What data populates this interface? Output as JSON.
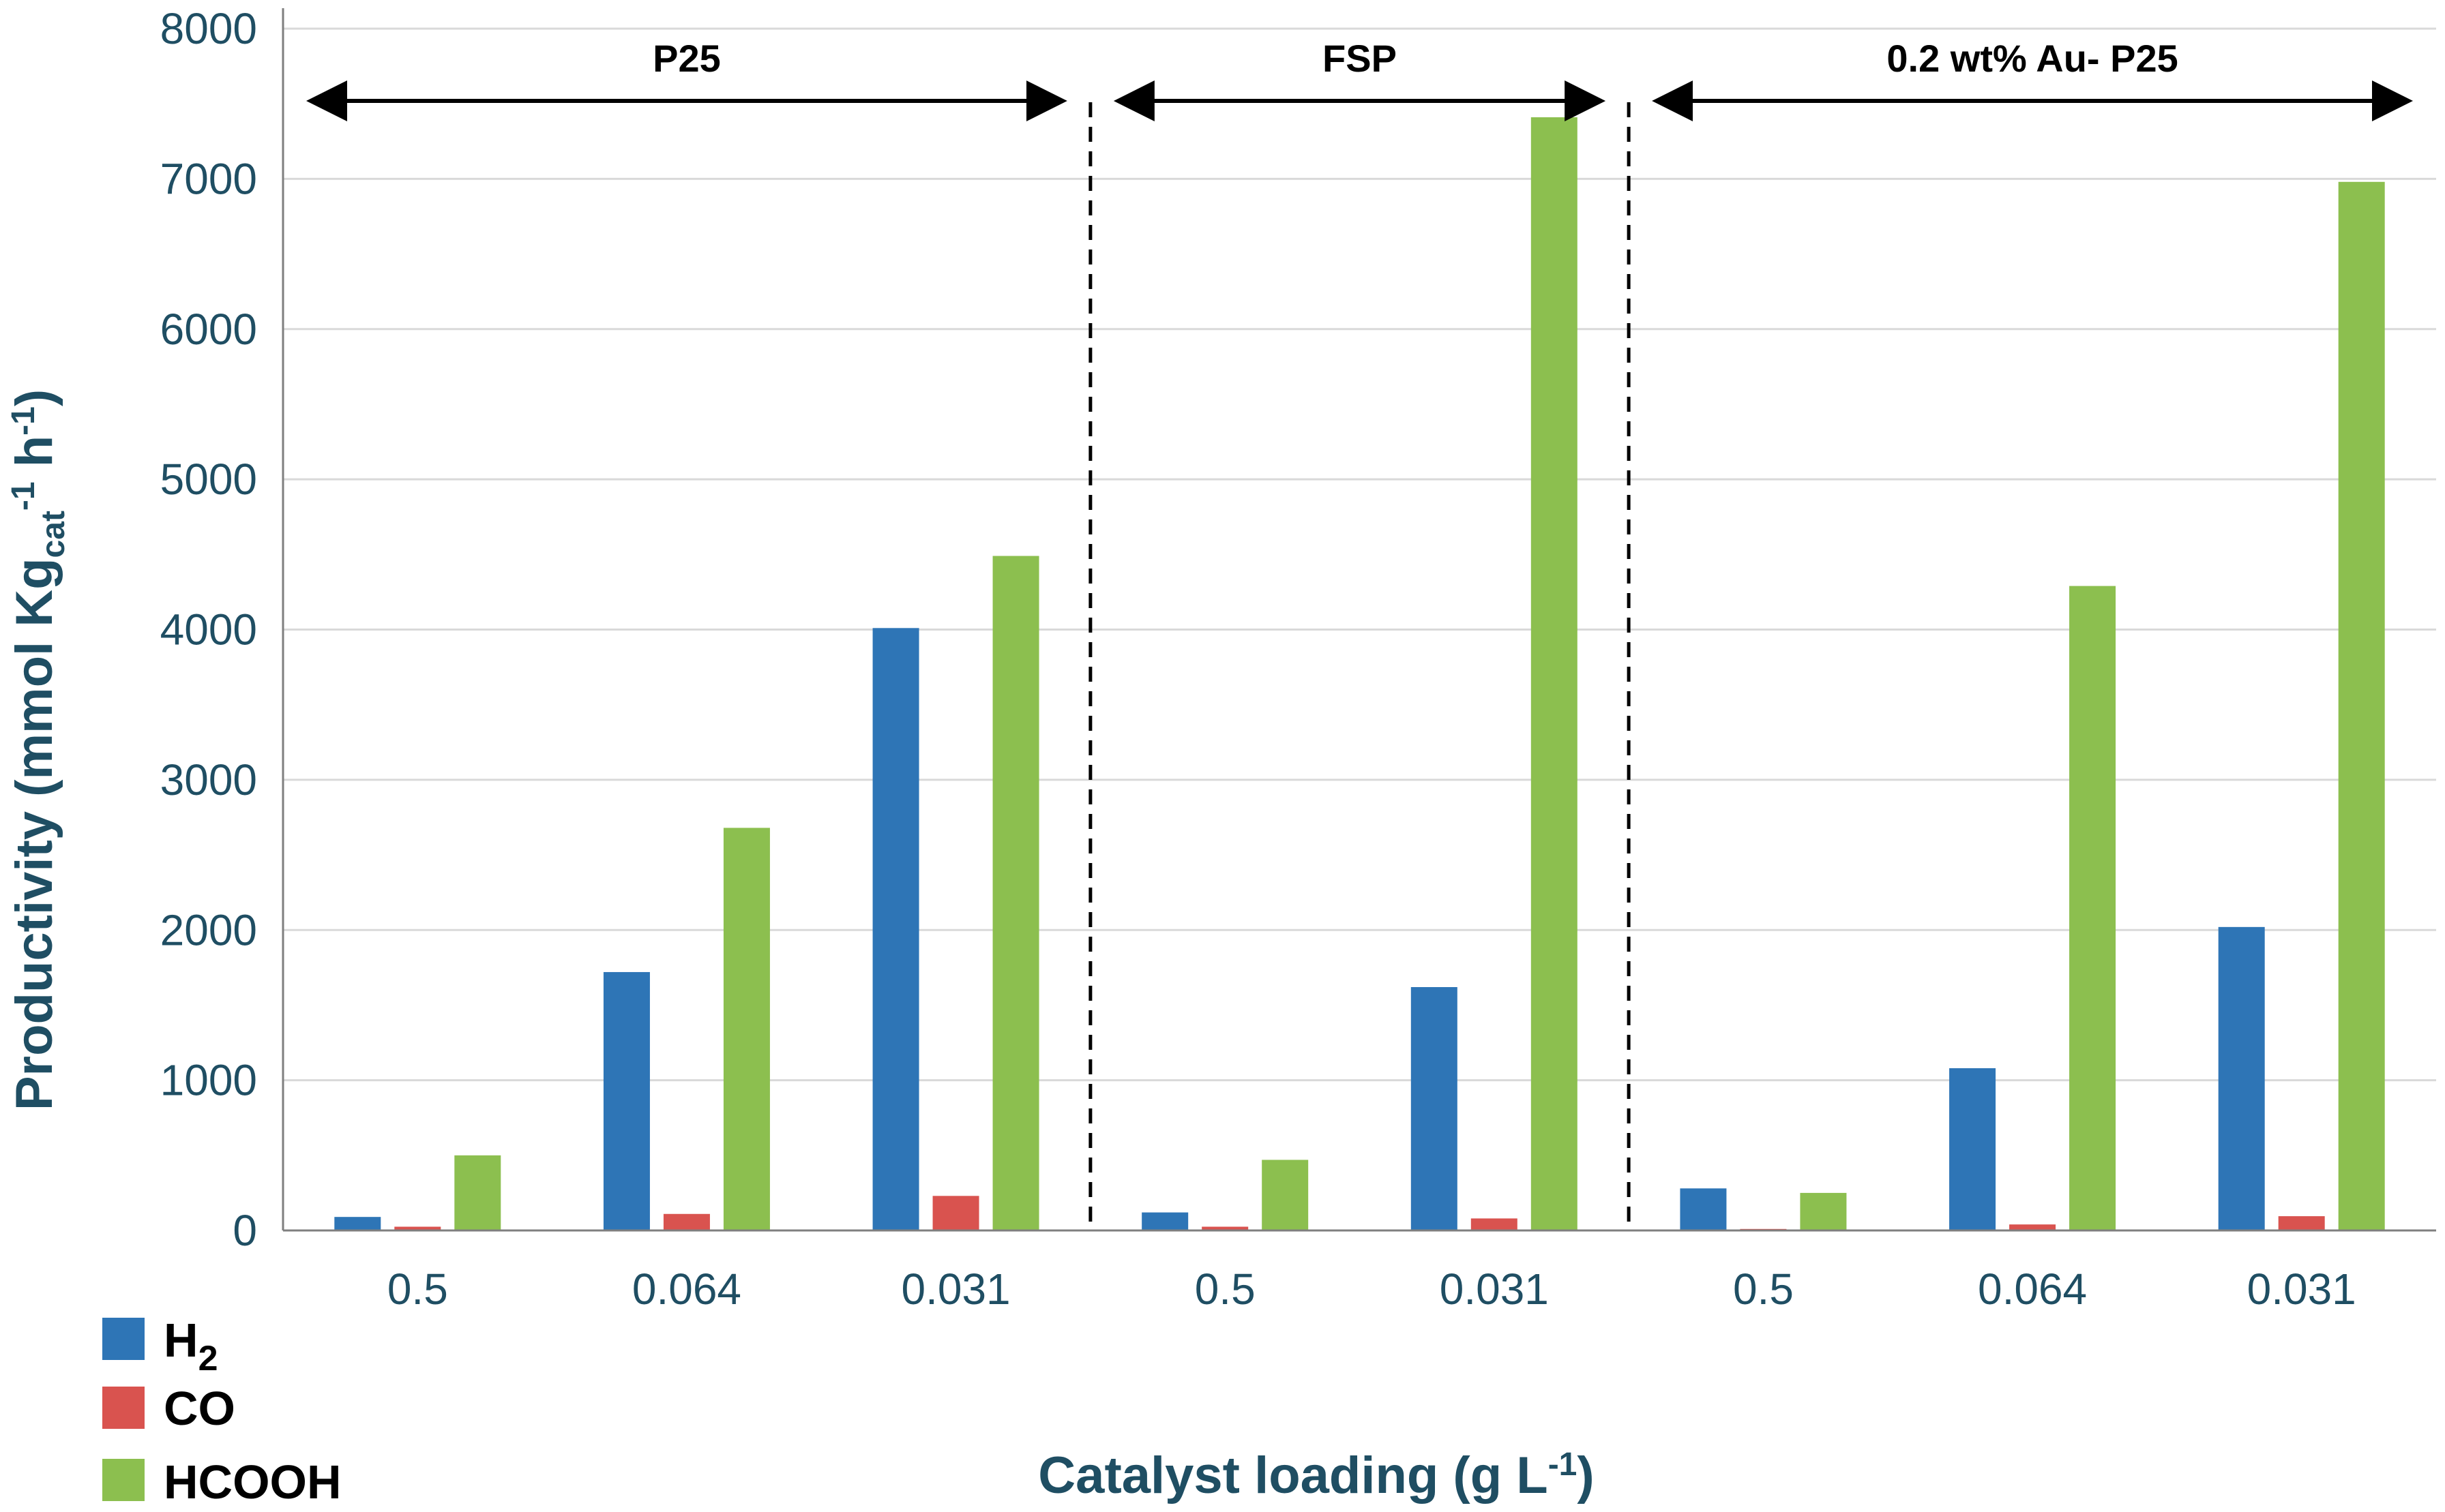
{
  "chart_data": {
    "type": "bar",
    "title": "",
    "xlabel": "Catalyst loading (g L-1)",
    "xlabel_parts": {
      "main": "Catalyst loading (g L",
      "sup": "-1",
      "end": ")"
    },
    "ylabel": "Productivity (mmol Kgcat-1 h-1)",
    "ylabel_parts": {
      "p1": "Productivity (mmol Kg",
      "sub": "cat",
      "sup1": "-1",
      "p2": " h",
      "sup2": "-1",
      "p3": ")"
    },
    "ylim": [
      0,
      8000
    ],
    "yticks": [
      0,
      1000,
      2000,
      3000,
      4000,
      5000,
      6000,
      7000,
      8000
    ],
    "grid": true,
    "legend_position": "bottom-left",
    "categories": [
      "0.5",
      "0.064",
      "0.031",
      "0.5",
      "0.031",
      "0.5",
      "0.064",
      "0.031"
    ],
    "series": [
      {
        "name": "H2",
        "name_main": "H",
        "name_sub": "2",
        "color": "#2e75b6",
        "values": [
          90,
          1720,
          4010,
          120,
          1620,
          280,
          1080,
          2020
        ]
      },
      {
        "name": "CO",
        "color": "#d9534f",
        "values": [
          25,
          110,
          230,
          25,
          80,
          10,
          40,
          95
        ]
      },
      {
        "name": "HCOOH",
        "color": "#8cbf4f",
        "values": [
          500,
          2680,
          4490,
          470,
          7410,
          250,
          4290,
          6980
        ]
      }
    ],
    "groups": [
      {
        "label": "P25",
        "start": 0,
        "end": 2
      },
      {
        "label": "FSP",
        "start": 3,
        "end": 4
      },
      {
        "label": "0.2 wt% Au- P25",
        "start": 5,
        "end": 7
      }
    ]
  }
}
